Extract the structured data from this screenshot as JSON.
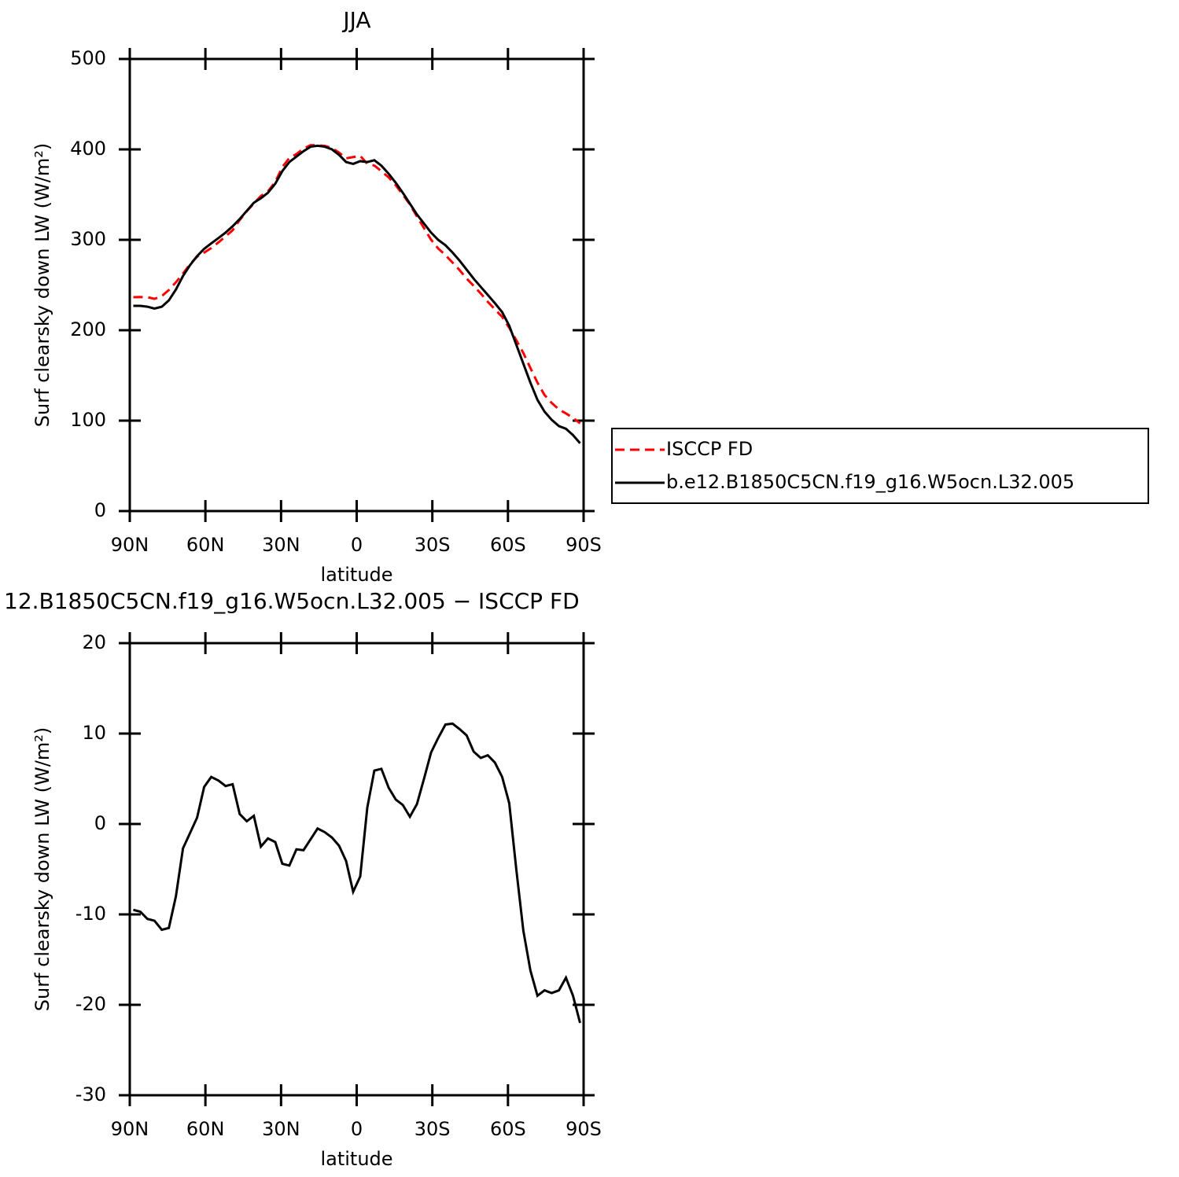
{
  "chart_data": [
    {
      "type": "line",
      "title": "JJA",
      "xlabel": "latitude",
      "ylabel": "Surf clearsky down LW (W/m²)",
      "x": [
        88.6,
        85.8,
        83.0,
        80.2,
        77.3,
        74.5,
        71.7,
        68.9,
        66.1,
        63.3,
        60.5,
        57.7,
        54.8,
        52.0,
        49.2,
        46.4,
        43.6,
        40.8,
        38.0,
        35.2,
        32.3,
        29.5,
        26.7,
        23.9,
        21.1,
        18.3,
        15.5,
        12.7,
        9.8,
        7.0,
        4.2,
        1.4,
        -1.4,
        -4.2,
        -7.0,
        -9.8,
        -12.7,
        -15.5,
        -18.3,
        -21.1,
        -23.9,
        -26.7,
        -29.5,
        -32.3,
        -35.2,
        -38.0,
        -40.8,
        -43.6,
        -46.4,
        -49.2,
        -52.0,
        -54.8,
        -57.7,
        -60.5,
        -63.3,
        -66.1,
        -68.9,
        -71.7,
        -74.5,
        -77.3,
        -80.2,
        -83.0,
        -85.8,
        -88.6
      ],
      "series": [
        {
          "name": "ISCCP FD",
          "color": "#ff0000",
          "linestyle": "dashed",
          "values": [
            236.5,
            236.7,
            236.5,
            234.7,
            237.7,
            244.5,
            253,
            262.7,
            273,
            281.3,
            285.9,
            290.8,
            297.2,
            303.8,
            310.6,
            321.9,
            331.7,
            340.1,
            348.5,
            353.6,
            364,
            380.4,
            390.6,
            394.8,
            400.9,
            404.7,
            404.5,
            403.9,
            401.5,
            396.4,
            390.1,
            391.5,
            392.8,
            384.2,
            382.1,
            375.9,
            369,
            360.3,
            349.9,
            339.2,
            325.8,
            313,
            300.1,
            290.5,
            283,
            274.9,
            266.5,
            257.2,
            249,
            240.7,
            231.4,
            223.2,
            214.8,
            202.7,
            189,
            174.8,
            158.2,
            142,
            128.4,
            119.7,
            112.4,
            108,
            103,
            97
          ]
        },
        {
          "name": "b.e12.B1850C5CN.f19_g16.W5ocn.L32.005",
          "color": "#000000",
          "linestyle": "solid",
          "values": [
            227,
            227,
            226,
            224,
            226,
            233,
            245,
            260,
            272,
            282,
            290,
            296,
            302,
            308,
            315,
            323,
            332,
            341,
            346,
            352,
            362,
            376,
            386,
            392,
            398,
            403,
            404,
            403,
            400,
            394,
            386,
            384,
            387,
            386,
            388,
            382,
            373,
            363,
            352,
            340,
            328,
            318,
            308,
            300,
            294,
            286,
            277,
            267,
            257,
            248,
            239,
            230,
            220,
            205,
            184,
            163,
            142,
            123,
            110,
            101,
            94,
            91,
            84,
            75
          ]
        }
      ],
      "xlim": [
        90,
        -90
      ],
      "xticks": [
        {
          "value": 90,
          "label": "90N"
        },
        {
          "value": 60,
          "label": "60N"
        },
        {
          "value": 30,
          "label": "30N"
        },
        0,
        {
          "value": -30,
          "label": "30S"
        },
        {
          "value": -60,
          "label": "60S"
        },
        {
          "value": -90,
          "label": "90S"
        }
      ],
      "ylim": [
        0,
        500
      ],
      "yticks": [
        0,
        100,
        200,
        300,
        400,
        500
      ],
      "legend": "right"
    },
    {
      "type": "line",
      "title": "12.B1850C5CN.f19_g16.W5ocn.L32.005 − ISCCP FD",
      "xlabel": "latitude",
      "ylabel": "Surf clearsky down LW (W/m²)",
      "x": [
        88.6,
        85.8,
        83.0,
        80.2,
        77.3,
        74.5,
        71.7,
        68.9,
        66.1,
        63.3,
        60.5,
        57.7,
        54.8,
        52.0,
        49.2,
        46.4,
        43.6,
        40.8,
        38.0,
        35.2,
        32.3,
        29.5,
        26.7,
        23.9,
        21.1,
        18.3,
        15.5,
        12.7,
        9.8,
        7.0,
        4.2,
        1.4,
        -1.4,
        -4.2,
        -7.0,
        -9.8,
        -12.7,
        -15.5,
        -18.3,
        -21.1,
        -23.9,
        -26.7,
        -29.5,
        -32.3,
        -35.2,
        -38.0,
        -40.8,
        -43.6,
        -46.4,
        -49.2,
        -52.0,
        -54.8,
        -57.7,
        -60.5,
        -63.3,
        -66.1,
        -68.9,
        -71.7,
        -74.5,
        -77.3,
        -80.2,
        -83.0,
        -85.8,
        -88.6
      ],
      "values": [
        -9.5,
        -9.7,
        -10.5,
        -10.7,
        -11.7,
        -11.5,
        -8,
        -2.7,
        -1,
        0.7,
        4.1,
        5.2,
        4.8,
        4.2,
        4.4,
        1.1,
        0.3,
        0.9,
        -2.5,
        -1.6,
        -2,
        -4.4,
        -4.6,
        -2.8,
        -2.9,
        -1.7,
        -0.5,
        -0.9,
        -1.5,
        -2.4,
        -4.1,
        -7.5,
        -5.8,
        1.8,
        5.9,
        6.1,
        4,
        2.7,
        2.1,
        0.8,
        2.2,
        5,
        7.9,
        9.5,
        11,
        11.1,
        10.5,
        9.8,
        8,
        7.3,
        7.6,
        6.8,
        5.2,
        2.3,
        -5,
        -11.8,
        -16.2,
        -19,
        -18.4,
        -18.7,
        -18.4,
        -17,
        -19,
        -22
      ],
      "color": "#000000",
      "xlim": [
        90,
        -90
      ],
      "xticks": [
        {
          "value": 90,
          "label": "90N"
        },
        {
          "value": 60,
          "label": "60N"
        },
        {
          "value": 30,
          "label": "30N"
        },
        0,
        {
          "value": -30,
          "label": "30S"
        },
        {
          "value": -60,
          "label": "60S"
        },
        {
          "value": -90,
          "label": "90S"
        }
      ],
      "ylim": [
        -30,
        20
      ],
      "yticks": [
        -30,
        -20,
        -10,
        0,
        10,
        20
      ]
    }
  ]
}
